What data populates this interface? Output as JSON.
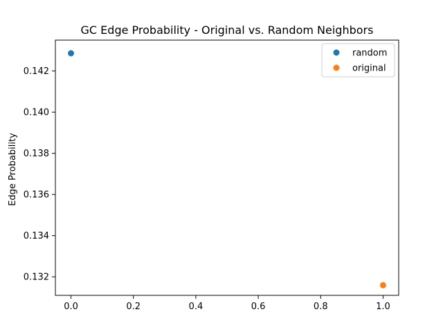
{
  "chart_data": {
    "type": "scatter",
    "title": "GC Edge Probability - Original vs. Random Neighbors",
    "xlabel": "",
    "ylabel": "Edge Probability",
    "xlim": [
      -0.05,
      1.05
    ],
    "ylim": [
      0.1311,
      0.1435
    ],
    "xticks": [
      0.0,
      0.2,
      0.4,
      0.6,
      0.8,
      1.0
    ],
    "xtick_labels": [
      "0.0",
      "0.2",
      "0.4",
      "0.6",
      "0.8",
      "1.0"
    ],
    "yticks": [
      0.132,
      0.134,
      0.136,
      0.138,
      0.14,
      0.142
    ],
    "ytick_labels": [
      "0.132",
      "0.134",
      "0.136",
      "0.138",
      "0.140",
      "0.142"
    ],
    "grid": false,
    "legend_position": "top-right",
    "series": [
      {
        "name": "random",
        "color": "#1f77b4",
        "points": [
          {
            "x": 0.0,
            "y": 0.14286
          }
        ]
      },
      {
        "name": "original",
        "color": "#ff7f0e",
        "points": [
          {
            "x": 1.0,
            "y": 0.13159
          }
        ]
      }
    ]
  }
}
